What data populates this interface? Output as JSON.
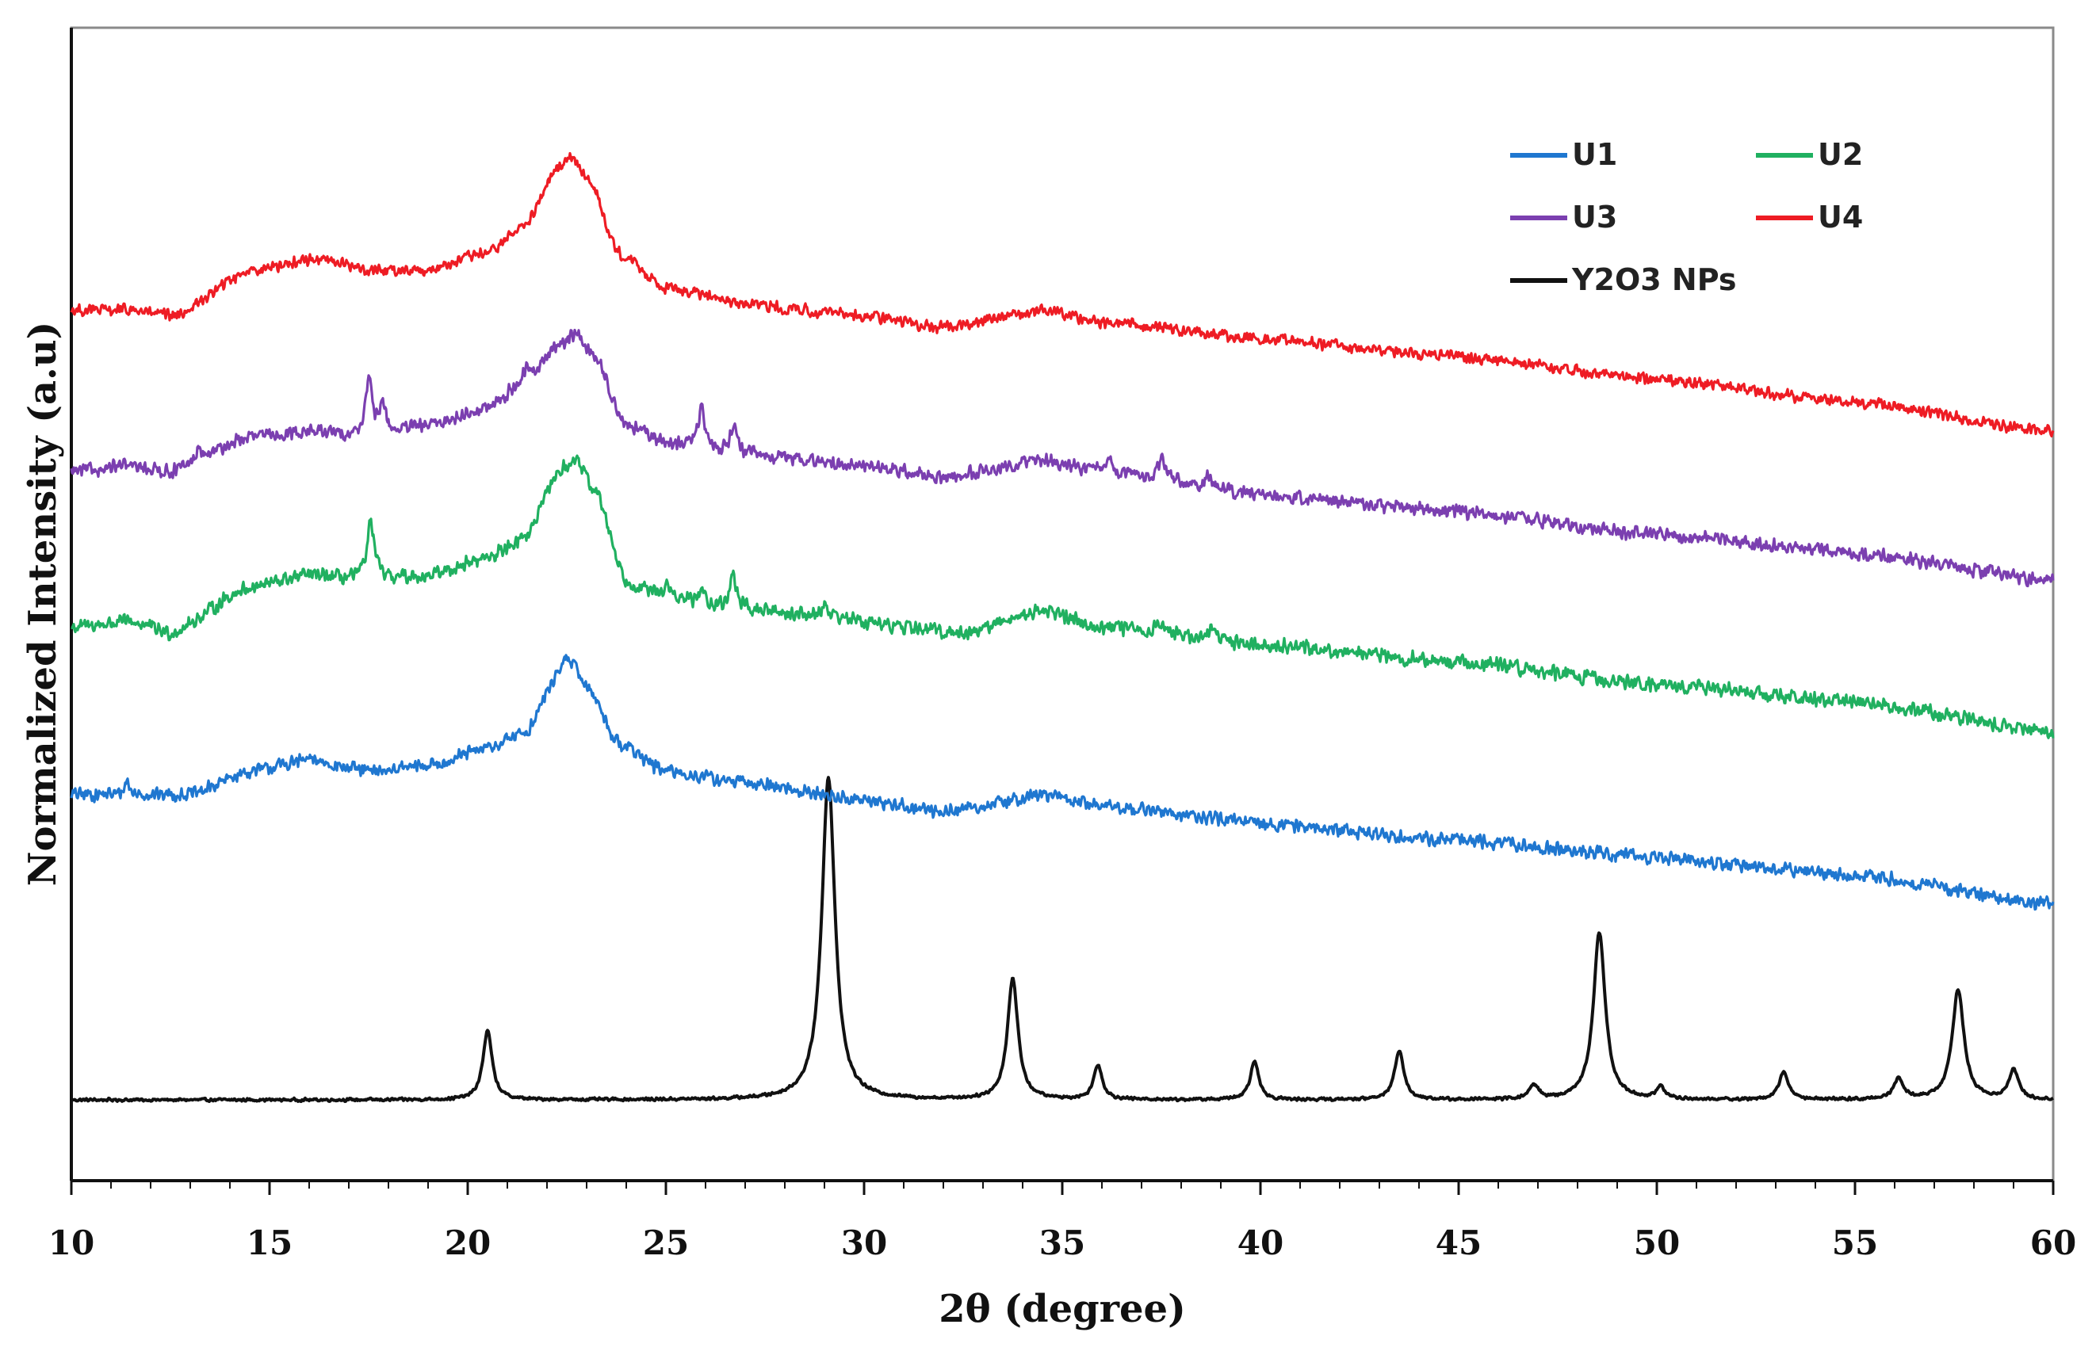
{
  "chart_data": {
    "type": "line",
    "title": "",
    "xlabel": "2θ (degree)",
    "ylabel": "Normalized Intensity (a.u)",
    "xlim": [
      10,
      60
    ],
    "xticks": [
      10,
      15,
      20,
      25,
      30,
      35,
      40,
      45,
      50,
      55,
      60
    ],
    "ylim": [
      0,
      100
    ],
    "y_ticks_labeled": false,
    "grid": false,
    "legend": {
      "placement": "top-right",
      "columns": 2
    },
    "series": [
      {
        "name": "U1",
        "color": "#1f77d0",
        "noise": 0.7,
        "baseline": [
          [
            10,
            33.5
          ],
          [
            11.5,
            33.5
          ],
          [
            13,
            33.5
          ],
          [
            14.5,
            35.5
          ],
          [
            16,
            36.5
          ],
          [
            17.5,
            35.5
          ],
          [
            19,
            36
          ],
          [
            20.5,
            37.5
          ],
          [
            21.5,
            39
          ],
          [
            22.2,
            43.5
          ],
          [
            22.5,
            45.5
          ],
          [
            23,
            43
          ],
          [
            23.8,
            38
          ],
          [
            25,
            35.5
          ],
          [
            27,
            34.5
          ],
          [
            30,
            33
          ],
          [
            32,
            32
          ],
          [
            33,
            32.5
          ],
          [
            34.5,
            33.5
          ],
          [
            36,
            32.5
          ],
          [
            40,
            31
          ],
          [
            45,
            29.5
          ],
          [
            50,
            28
          ],
          [
            55,
            26.5
          ],
          [
            60,
            24
          ]
        ],
        "peaks": [
          [
            11.4,
            1.3,
            0.06
          ]
        ]
      },
      {
        "name": "U2",
        "color": "#20b060",
        "noise": 0.75,
        "baseline": [
          [
            10,
            48
          ],
          [
            11.5,
            48.5
          ],
          [
            12.5,
            47.5
          ],
          [
            14.5,
            51.5
          ],
          [
            16,
            52.5
          ],
          [
            17.5,
            52
          ],
          [
            19,
            52.5
          ],
          [
            20.5,
            54
          ],
          [
            21.5,
            56
          ],
          [
            22.3,
            61.5
          ],
          [
            22.7,
            62.5
          ],
          [
            23.2,
            60
          ],
          [
            24,
            52
          ],
          [
            25,
            50.5
          ],
          [
            27,
            49.5
          ],
          [
            29,
            49
          ],
          [
            31,
            48
          ],
          [
            32.5,
            47.5
          ],
          [
            34.5,
            49.5
          ],
          [
            36,
            48
          ],
          [
            40,
            46.5
          ],
          [
            45,
            45
          ],
          [
            50,
            43
          ],
          [
            55,
            41.5
          ],
          [
            60,
            39
          ]
        ],
        "peaks": [
          [
            17.55,
            5,
            0.12
          ],
          [
            26.7,
            3,
            0.1
          ],
          [
            25,
            1.2,
            0.1
          ],
          [
            25.9,
            1,
            0.1
          ],
          [
            29,
            1,
            0.1
          ],
          [
            37.5,
            1,
            0.12
          ],
          [
            38.8,
            1,
            0.15
          ]
        ]
      },
      {
        "name": "U3",
        "color": "#7b3fb0",
        "noise": 0.7,
        "baseline": [
          [
            10,
            61.5
          ],
          [
            11.5,
            62
          ],
          [
            12.5,
            61.5
          ],
          [
            14.5,
            64.5
          ],
          [
            16,
            65
          ],
          [
            17.5,
            64.5
          ],
          [
            19,
            65.5
          ],
          [
            20.5,
            67
          ],
          [
            21.5,
            69.5
          ],
          [
            22.3,
            72.5
          ],
          [
            22.7,
            73.5
          ],
          [
            23.2,
            71.5
          ],
          [
            24,
            65.5
          ],
          [
            25,
            64
          ],
          [
            27,
            63
          ],
          [
            30,
            62
          ],
          [
            32,
            61
          ],
          [
            34.5,
            62.5
          ],
          [
            36,
            61.5
          ],
          [
            40,
            59.5
          ],
          [
            45,
            58
          ],
          [
            50,
            56
          ],
          [
            55,
            54.5
          ],
          [
            60,
            52
          ]
        ],
        "peaks": [
          [
            17.5,
            5,
            0.1
          ],
          [
            17.85,
            2.8,
            0.09
          ],
          [
            25.9,
            3.5,
            0.1
          ],
          [
            26.7,
            2.5,
            0.1
          ],
          [
            13.2,
            1,
            0.08
          ],
          [
            36.2,
            1,
            0.1
          ],
          [
            37.5,
            2,
            0.1
          ],
          [
            38.7,
            1,
            0.12
          ],
          [
            21.5,
            1,
            0.1
          ]
        ]
      },
      {
        "name": "U4",
        "color": "#ee1c24",
        "noise": 0.6,
        "baseline": [
          [
            10,
            75.5
          ],
          [
            11.5,
            75.5
          ],
          [
            12.6,
            75
          ],
          [
            14.5,
            79
          ],
          [
            16.3,
            80
          ],
          [
            17.5,
            79
          ],
          [
            19,
            79
          ],
          [
            20.5,
            80.5
          ],
          [
            21.5,
            83
          ],
          [
            22.2,
            87.5
          ],
          [
            22.6,
            89
          ],
          [
            23.1,
            86.5
          ],
          [
            23.8,
            80.5
          ],
          [
            25,
            77.5
          ],
          [
            27,
            76
          ],
          [
            30,
            75
          ],
          [
            32,
            74
          ],
          [
            34.5,
            75.5
          ],
          [
            36,
            74.5
          ],
          [
            40,
            73
          ],
          [
            45,
            71.5
          ],
          [
            50,
            69.5
          ],
          [
            55,
            67.5
          ],
          [
            60,
            65
          ]
        ],
        "peaks": []
      },
      {
        "name": "Y2O3 NPs",
        "color": "#111111",
        "noise": 0.15,
        "baseline": [
          [
            10,
            7
          ],
          [
            60,
            7
          ]
        ],
        "peaks": [
          [
            20.5,
            6,
            0.14
          ],
          [
            29.1,
            28,
            0.2
          ],
          [
            33.75,
            10.5,
            0.16
          ],
          [
            35.9,
            3,
            0.13
          ],
          [
            39.85,
            3.3,
            0.13
          ],
          [
            43.5,
            4.3,
            0.14
          ],
          [
            46.9,
            1.2,
            0.14
          ],
          [
            48.55,
            14.5,
            0.18
          ],
          [
            50.1,
            1,
            0.13
          ],
          [
            53.2,
            2.3,
            0.15
          ],
          [
            56.1,
            1.8,
            0.15
          ],
          [
            57.6,
            9.5,
            0.18
          ],
          [
            59,
            2.5,
            0.15
          ]
        ]
      }
    ]
  }
}
